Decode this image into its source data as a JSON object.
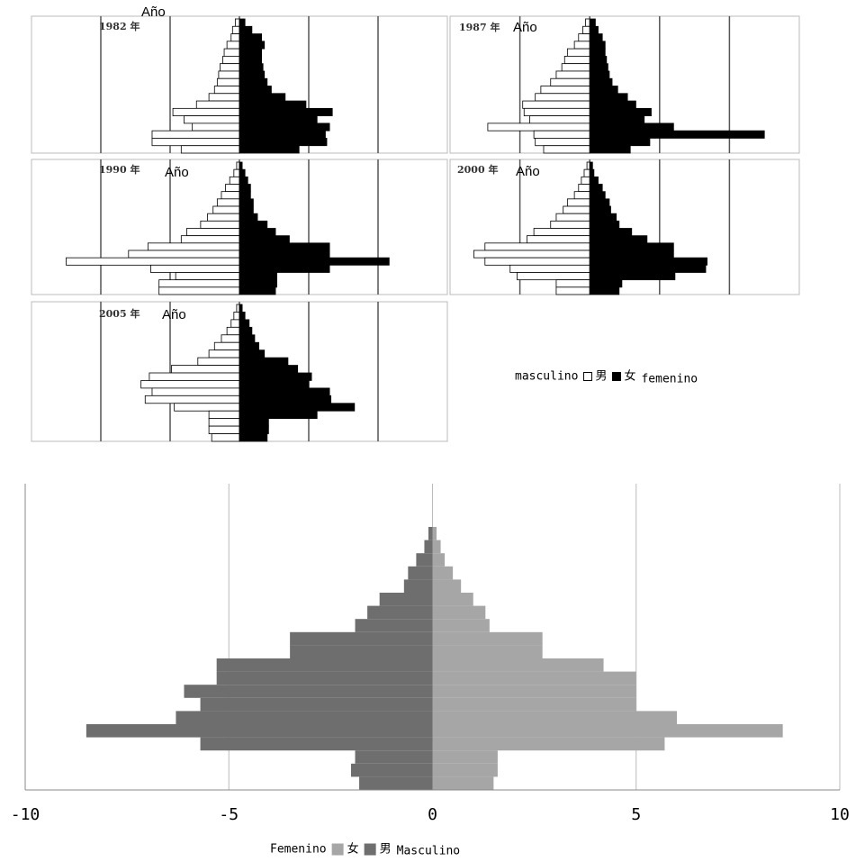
{
  "chart_data": [
    {
      "type": "pyramid",
      "title": "1982 年",
      "subtitle": "Año",
      "xlim": [
        -15,
        15
      ],
      "xticks": [
        -10,
        -5,
        0,
        5,
        10
      ],
      "grid": true,
      "series": [
        {
          "color": "#ffffff",
          "values": [
            -0.3,
            -0.5,
            -0.6,
            -0.9,
            -1.1,
            -1.2,
            -1.4,
            -1.5,
            -1.6,
            -1.8,
            -2.2,
            -3.1,
            -4.8,
            -4.0,
            -3.4,
            -6.3,
            -6.3,
            -4.2
          ]
        },
        {
          "color": "#000000",
          "values": [
            0.4,
            0.9,
            1.6,
            1.8,
            1.6,
            1.6,
            1.7,
            1.8,
            2.0,
            2.3,
            3.3,
            4.8,
            6.7,
            5.6,
            6.5,
            6.2,
            6.3,
            4.3
          ]
        }
      ]
    },
    {
      "type": "pyramid",
      "title": "1987 年",
      "subtitle": "Año",
      "xlim": [
        -10,
        15
      ],
      "xticks": [
        -5,
        0,
        5,
        10
      ],
      "grid": true,
      "series": [
        {
          "color": "#ffffff",
          "values": [
            -0.3,
            -0.5,
            -0.8,
            -1.1,
            -1.6,
            -1.8,
            -2.0,
            -2.4,
            -2.8,
            -3.5,
            -3.9,
            -4.8,
            -4.7,
            -4.3,
            -7.3,
            -4.0,
            -3.9,
            -3.3
          ]
        },
        {
          "color": "#000000",
          "values": [
            0.4,
            0.6,
            0.9,
            1.1,
            1.1,
            1.2,
            1.3,
            1.4,
            1.6,
            2.0,
            2.7,
            3.3,
            4.4,
            3.9,
            6.0,
            12.5,
            4.3,
            2.9
          ]
        }
      ]
    },
    {
      "type": "pyramid",
      "title": "1990 年",
      "subtitle": "Año",
      "xlim": [
        -15,
        15
      ],
      "xticks": [
        -10,
        -5,
        0,
        5,
        10
      ],
      "grid": true,
      "series": [
        {
          "color": "#ffffff",
          "values": [
            -0.2,
            -0.4,
            -0.7,
            -1.0,
            -1.3,
            -1.6,
            -1.9,
            -2.3,
            -2.8,
            -3.8,
            -4.2,
            -6.6,
            -8.0,
            -12.5,
            -6.4,
            -4.6,
            -5.8,
            -5.8
          ]
        },
        {
          "color": "#000000",
          "values": [
            0.2,
            0.4,
            0.6,
            0.8,
            0.8,
            1.0,
            1.0,
            1.3,
            2.0,
            2.6,
            3.6,
            6.5,
            6.5,
            10.8,
            6.5,
            2.7,
            2.7,
            2.6
          ]
        }
      ]
    },
    {
      "type": "pyramid",
      "title": "2000 年",
      "subtitle": "Año",
      "xlim": [
        -10,
        15
      ],
      "xticks": [
        -5,
        0,
        5,
        10
      ],
      "grid": true,
      "series": [
        {
          "color": "#ffffff",
          "values": [
            -0.2,
            -0.4,
            -0.6,
            -0.8,
            -1.1,
            -1.6,
            -1.9,
            -2.4,
            -2.8,
            -4.0,
            -4.5,
            -7.5,
            -8.3,
            -7.5,
            -5.7,
            -5.2,
            -2.4,
            -2.4
          ]
        },
        {
          "color": "#000000",
          "values": [
            0.2,
            0.3,
            0.6,
            0.9,
            1.1,
            1.4,
            1.5,
            1.9,
            2.1,
            3.0,
            4.1,
            6.0,
            6.0,
            8.4,
            8.3,
            6.1,
            2.3,
            2.1
          ]
        }
      ]
    },
    {
      "type": "pyramid",
      "title": "2005 年",
      "subtitle": "Año",
      "xlim": [
        -15,
        15
      ],
      "xticks": [
        -10,
        -5,
        0,
        5,
        10
      ],
      "grid": true,
      "legend_labels": [
        "masculino",
        "femenino"
      ],
      "series": [
        {
          "name": "男",
          "color": "#ffffff",
          "values": [
            -0.2,
            -0.4,
            -0.6,
            -0.9,
            -1.3,
            -1.8,
            -2.2,
            -3.0,
            -4.9,
            -6.5,
            -7.1,
            -6.3,
            -6.8,
            -4.7,
            -2.2,
            -2.2,
            -2.2,
            -2.0
          ]
        },
        {
          "name": "女",
          "color": "#000000",
          "values": [
            0.2,
            0.4,
            0.7,
            0.9,
            1.1,
            1.4,
            1.8,
            3.5,
            4.2,
            5.2,
            5.0,
            6.5,
            6.6,
            8.3,
            5.6,
            2.1,
            2.1,
            2.0
          ]
        }
      ]
    },
    {
      "type": "pyramid",
      "xlim": [
        -10,
        10
      ],
      "xticks": [
        -10,
        -5,
        0,
        5,
        10
      ],
      "grid": true,
      "legend_labels": [
        "Femenino",
        "Masculino"
      ],
      "series": [
        {
          "name": "女",
          "color": "#a6a6a6",
          "values": [
            0.1,
            0.2,
            0.3,
            0.5,
            0.7,
            1.0,
            1.3,
            1.4,
            2.7,
            2.7,
            4.2,
            5.0,
            5.0,
            5.0,
            6.0,
            8.6,
            5.7,
            1.6,
            1.6,
            1.5
          ]
        },
        {
          "name": "男",
          "color": "#6e6e6e",
          "values": [
            -0.1,
            -0.2,
            -0.4,
            -0.6,
            -0.7,
            -1.3,
            -1.6,
            -1.9,
            -3.5,
            -3.5,
            -5.3,
            -5.3,
            -6.1,
            -5.7,
            -6.3,
            -8.5,
            -5.7,
            -1.9,
            -2.0,
            -1.8
          ]
        }
      ]
    }
  ]
}
